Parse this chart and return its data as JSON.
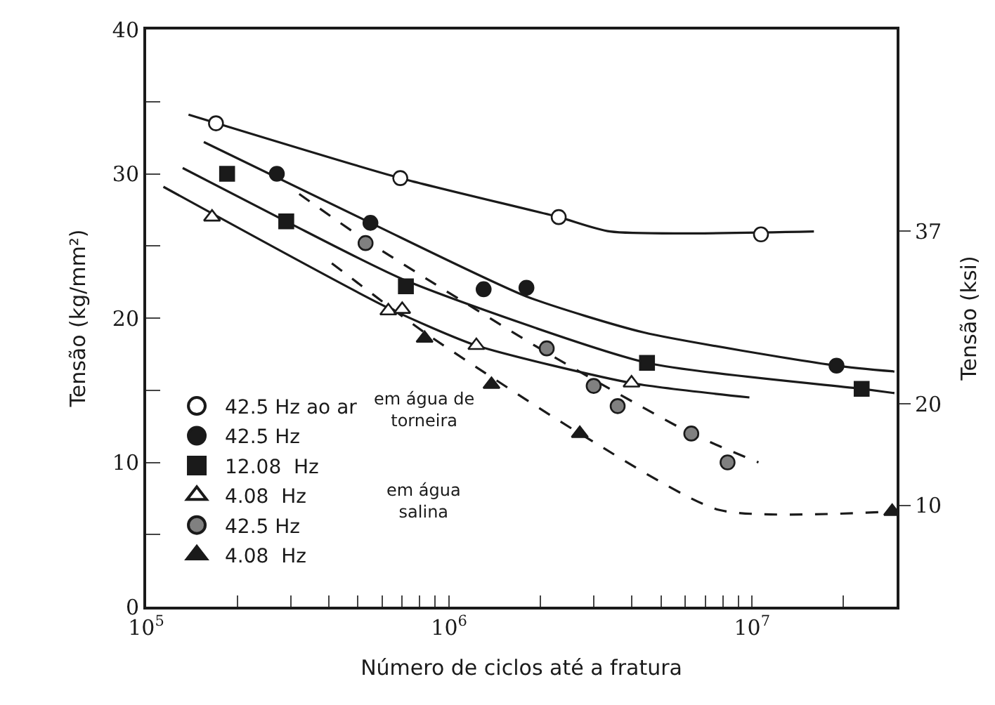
{
  "chart_data": {
    "type": "scatter",
    "xlabel": "Número de ciclos até a fratura",
    "ylabel": "Tensão (kg/mm²)",
    "y2label": "Tensão (ksi)",
    "log": "x",
    "xlim": [
      100000,
      30000000
    ],
    "xticks": [
      {
        "value": 100000,
        "label": "10$^{5}$"
      },
      {
        "value": 200000,
        "label": null
      },
      {
        "value": 300000,
        "label": null
      },
      {
        "value": 400000,
        "label": null
      },
      {
        "value": 500000,
        "label": null
      },
      {
        "value": 600000,
        "label": null
      },
      {
        "value": 700000,
        "label": null
      },
      {
        "value": 800000,
        "label": null
      },
      {
        "value": 900000,
        "label": null
      },
      {
        "value": 1000000,
        "label": "10$^{6}$"
      },
      {
        "value": 2000000,
        "label": null
      },
      {
        "value": 3000000,
        "label": null
      },
      {
        "value": 4000000,
        "label": null
      },
      {
        "value": 5000000,
        "label": null
      },
      {
        "value": 6000000,
        "label": null
      },
      {
        "value": 7000000,
        "label": null
      },
      {
        "value": 8000000,
        "label": null
      },
      {
        "value": 9000000,
        "label": null
      },
      {
        "value": 10000000,
        "label": "10$^{7}$"
      },
      {
        "value": 20000000,
        "label": null
      }
    ],
    "ylim": [
      0,
      40
    ],
    "yticks": [
      0,
      {
        "value": 5,
        "label": null
      },
      10,
      {
        "value": 15,
        "label": null
      },
      20,
      {
        "value": 25,
        "label": null
      },
      30,
      {
        "value": 35,
        "label": null
      },
      40
    ],
    "y2lim": [
      0,
      56.9
    ],
    "y2ticks": [
      10,
      20,
      37
    ],
    "grid": false,
    "legend": "bottom left",
    "annotations": [
      "em água de torneira",
      "em água salina"
    ],
    "series": [
      {
        "name": "42.5 Hz ao ar",
        "marker": "circle",
        "color": "#ffffff",
        "x": [
          170000,
          690000,
          2300000,
          10700000
        ],
        "values": [
          33.5,
          29.7,
          27.0,
          25.8
        ]
      },
      {
        "name": "42.5 Hz",
        "marker": "circle",
        "color": "#1a1a1a",
        "x": [
          270000,
          550000,
          1300000,
          1800000,
          19000000
        ],
        "values": [
          30.0,
          26.6,
          22.0,
          22.1,
          16.7
        ]
      },
      {
        "name": "12.08  Hz",
        "marker": "square",
        "color": "#1a1a1a",
        "x": [
          185000,
          290000,
          720000,
          4500000,
          23000000
        ],
        "values": [
          30.0,
          26.7,
          22.2,
          16.9,
          15.1
        ]
      },
      {
        "name": "4.08  Hz",
        "marker": "triangle",
        "color": "#ffffff",
        "x": [
          165000,
          630000,
          700000,
          1230000,
          4000000
        ],
        "values": [
          27.0,
          20.5,
          20.6,
          18.1,
          15.5
        ]
      },
      {
        "name": "42.5 Hz",
        "marker": "circle",
        "color": "#808080",
        "x": [
          530000,
          2100000,
          3000000,
          3600000,
          6300000,
          8300000
        ],
        "values": [
          25.2,
          17.9,
          15.3,
          13.9,
          12.0,
          10.0
        ]
      },
      {
        "name": "4.08  Hz",
        "marker": "triangle",
        "color": "#1a1a1a",
        "x": [
          830000,
          1380000,
          2700000,
          29000000
        ],
        "values": [
          18.6,
          15.4,
          12.0,
          6.6
        ]
      },
      {
        "type": "line",
        "color": "#1a1a1a",
        "line_style": "solid",
        "x": [
          138000,
          690000,
          2300000,
          3400000,
          16000000
        ],
        "values": [
          34.1,
          29.7,
          27.0,
          26.0,
          26.0
        ]
      },
      {
        "type": "line",
        "color": "#1a1a1a",
        "line_style": "solid",
        "x": [
          155000,
          550000,
          1800000,
          4400000,
          19000000,
          29500000
        ],
        "values": [
          32.2,
          26.6,
          21.5,
          19.0,
          16.7,
          16.3
        ]
      },
      {
        "type": "line",
        "color": "#1a1a1a",
        "line_style": "solid",
        "x": [
          132000,
          290000,
          720000,
          4500000,
          23000000,
          29500000
        ],
        "values": [
          30.4,
          26.7,
          22.6,
          16.9,
          15.1,
          14.8
        ]
      },
      {
        "type": "line",
        "color": "#1a1a1a",
        "line_style": "solid",
        "x": [
          114000,
          630000,
          1230000,
          4000000,
          9800000
        ],
        "values": [
          29.1,
          20.7,
          18.1,
          15.5,
          14.5
        ]
      },
      {
        "type": "line",
        "color": "#1a1a1a",
        "line_style": "dashed",
        "x": [
          320000,
          530000,
          2100000,
          6300000,
          10500000
        ],
        "values": [
          28.6,
          25.4,
          17.6,
          12.0,
          10.0
        ]
      },
      {
        "type": "line",
        "color": "#1a1a1a",
        "line_style": "dashed",
        "x": [
          410000,
          830000,
          2700000,
          7800000,
          29500000
        ],
        "values": [
          23.8,
          19.0,
          12.0,
          6.7,
          6.6
        ]
      }
    ]
  }
}
